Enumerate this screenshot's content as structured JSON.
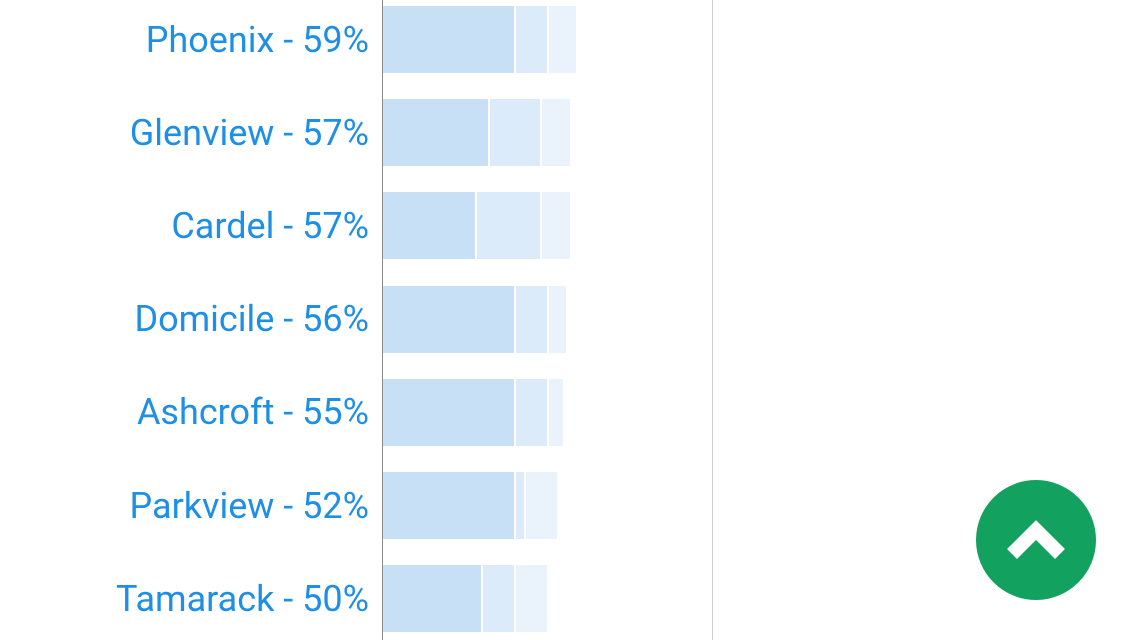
{
  "chart_data": {
    "type": "bar",
    "categories": [
      "Phoenix",
      "Glenview",
      "Cardel",
      "Domicile",
      "Ashcroft",
      "Parkview",
      "Tamarack"
    ],
    "labels": [
      "Phoenix - 59%",
      "Glenview - 57%",
      "Cardel - 57%",
      "Domicile - 56%",
      "Ashcroft - 55%",
      "Parkview - 52%",
      "Tamarack - 50%"
    ],
    "values": [
      59,
      57,
      57,
      56,
      55,
      52,
      50
    ],
    "segments": [
      [
        131,
        33,
        29
      ],
      [
        105,
        52,
        30
      ],
      [
        92,
        65,
        30
      ],
      [
        131,
        33,
        19
      ],
      [
        131,
        33,
        16
      ],
      [
        131,
        10,
        33
      ],
      [
        98,
        33,
        33
      ]
    ],
    "colors": {
      "label": "#1e8fe6",
      "segment_primary": "#c8e0f5",
      "segment_secondary": "#dcebf9",
      "segment_tertiary": "#eaf3fc"
    }
  },
  "fab": {
    "icon": "chevron-up-icon",
    "color": "#12a15f"
  }
}
